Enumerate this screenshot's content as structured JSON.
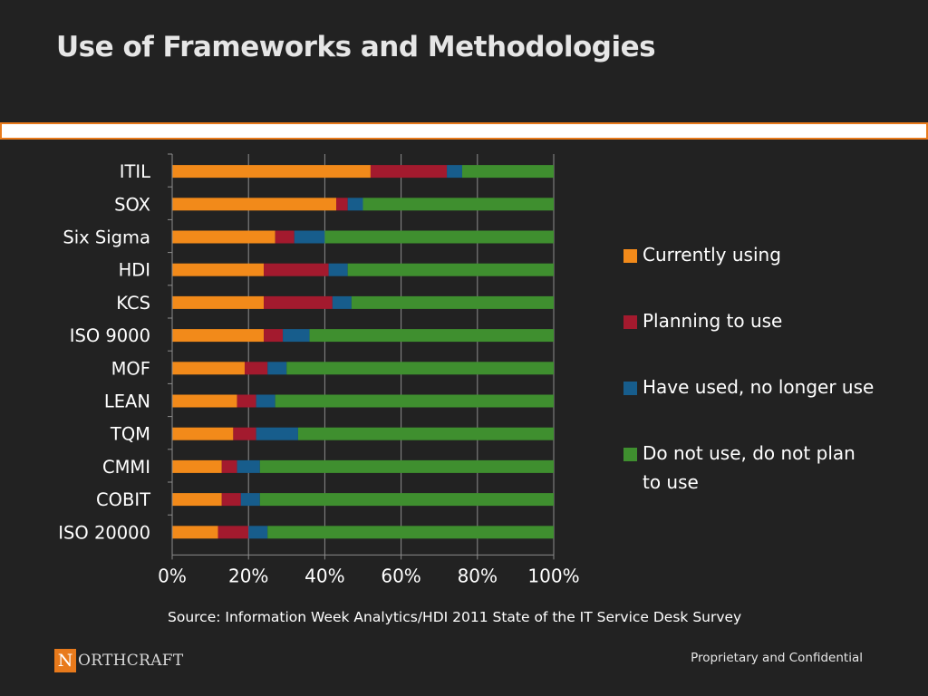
{
  "slide": {
    "title": "Use of Frameworks and Methodologies",
    "source": "Source: Information Week Analytics/HDI 2011 State of the IT Service Desk Survey",
    "footer_right": "Proprietary and Confidential",
    "logo": {
      "initial": "N",
      "text": "ORTHCRAFT"
    }
  },
  "chart_data": {
    "type": "bar",
    "orientation": "horizontal",
    "stacked": "percent",
    "categories": [
      "ITIL",
      "SOX",
      "Six Sigma",
      "HDI",
      "KCS",
      "ISO 9000",
      "MOF",
      "LEAN",
      "TQM",
      "CMMI",
      "COBIT",
      "ISO 20000"
    ],
    "series": [
      {
        "name": "Currently using",
        "color": "#f28a1a",
        "values": [
          52,
          43,
          27,
          24,
          24,
          24,
          19,
          17,
          16,
          13,
          13,
          12
        ]
      },
      {
        "name": "Planning to use",
        "color": "#a31a2e",
        "values": [
          20,
          3,
          5,
          17,
          18,
          5,
          6,
          5,
          6,
          4,
          5,
          8
        ]
      },
      {
        "name": "Have used, no longer use",
        "color": "#175d8c",
        "values": [
          4,
          4,
          8,
          5,
          5,
          7,
          5,
          5,
          11,
          6,
          5,
          5
        ]
      },
      {
        "name": "Do not use, do not plan to use",
        "color": "#3f8f2f",
        "values": [
          24,
          50,
          60,
          54,
          53,
          64,
          70,
          73,
          67,
          77,
          77,
          75
        ]
      }
    ],
    "xlim": [
      0,
      100
    ],
    "x_ticks": [
      "0%",
      "20%",
      "40%",
      "60%",
      "80%",
      "100%"
    ],
    "grid": true,
    "legend_position": "right"
  },
  "colors": {
    "background": "#222222",
    "accent": "#e87a1c"
  }
}
